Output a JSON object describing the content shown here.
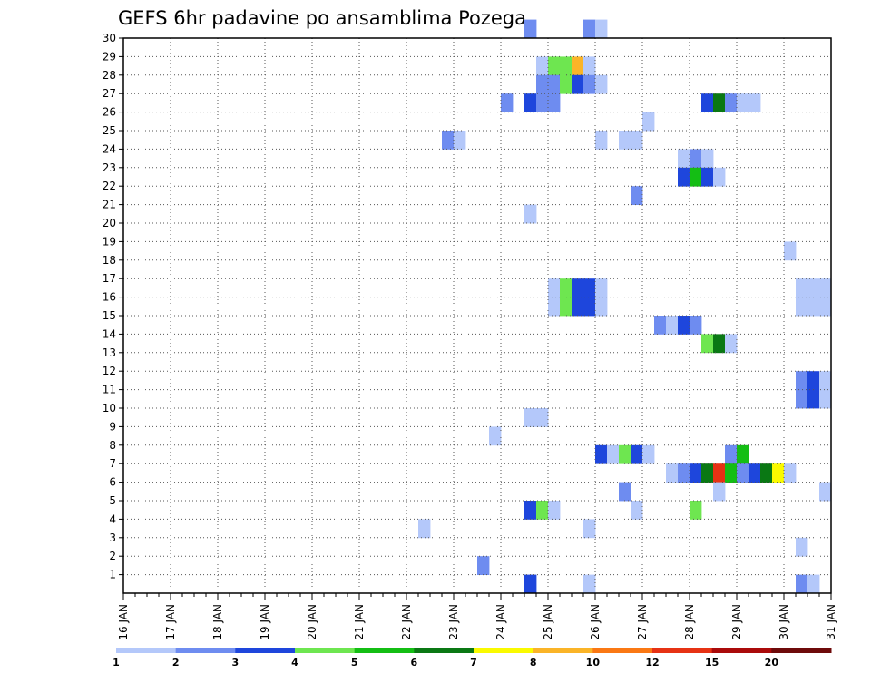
{
  "chart_data": {
    "type": "heatmap",
    "title": "GEFS 6hr padavine po ansamblima Pozega",
    "xlabel": "",
    "ylabel": "",
    "x_ticks": [
      "16 JAN",
      "17 JAN",
      "18 JAN",
      "19 JAN",
      "20 JAN",
      "21 JAN",
      "22 JAN",
      "23 JAN",
      "24 JAN",
      "25 JAN",
      "26 JAN",
      "27 JAN",
      "28 JAN",
      "29 JAN",
      "30 JAN",
      "31 JAN"
    ],
    "y_ticks": [
      1,
      2,
      3,
      4,
      5,
      6,
      7,
      8,
      9,
      10,
      11,
      12,
      13,
      14,
      15,
      16,
      17,
      18,
      19,
      20,
      21,
      22,
      23,
      24,
      25,
      26,
      27,
      28,
      29,
      30
    ],
    "time_steps_per_day": 4,
    "xlim_steps": [
      0,
      60
    ],
    "ylim": [
      0,
      30
    ],
    "grid": true,
    "legend": {
      "placement": "bottom",
      "colors": [
        "#b4c8fa",
        "#6e8cf0",
        "#1e46dc",
        "#6ee650",
        "#14be14",
        "#0a7814",
        "#fafa00",
        "#fab428",
        "#fa7814",
        "#e63214",
        "#aa0a0a",
        "#6e0a0a"
      ],
      "labels": [
        "1",
        "2",
        "3",
        "4",
        "5",
        "6",
        "7",
        "8",
        "10",
        "12",
        "15",
        "20"
      ]
    },
    "cells_note": "each cell is [time_step (6h steps from 16 JAN 00z), ensemble_member, color_class (1-based index into legend.colors)]",
    "cells": [
      [
        34,
        30,
        2
      ],
      [
        39,
        30,
        2
      ],
      [
        40,
        30,
        1
      ],
      [
        35,
        28,
        1
      ],
      [
        36,
        28,
        4
      ],
      [
        37,
        28,
        4
      ],
      [
        38,
        28,
        8
      ],
      [
        39,
        28,
        1
      ],
      [
        35,
        27,
        2
      ],
      [
        36,
        27,
        2
      ],
      [
        37,
        27,
        4
      ],
      [
        38,
        27,
        3
      ],
      [
        39,
        27,
        2
      ],
      [
        40,
        27,
        1
      ],
      [
        32,
        26,
        2
      ],
      [
        34,
        26,
        3
      ],
      [
        35,
        26,
        2
      ],
      [
        36,
        26,
        2
      ],
      [
        49,
        26,
        3
      ],
      [
        50,
        26,
        6
      ],
      [
        51,
        26,
        2
      ],
      [
        52,
        26,
        1
      ],
      [
        53,
        26,
        1
      ],
      [
        44,
        25,
        1
      ],
      [
        27,
        24,
        2
      ],
      [
        28,
        24,
        1
      ],
      [
        40,
        24,
        1
      ],
      [
        42,
        24,
        1
      ],
      [
        43,
        24,
        1
      ],
      [
        47,
        23,
        1
      ],
      [
        48,
        23,
        2
      ],
      [
        49,
        23,
        1
      ],
      [
        47,
        22,
        3
      ],
      [
        48,
        22,
        5
      ],
      [
        49,
        22,
        3
      ],
      [
        50,
        22,
        1
      ],
      [
        43,
        21,
        2
      ],
      [
        34,
        20,
        1
      ],
      [
        56,
        18,
        1
      ],
      [
        36,
        16,
        1
      ],
      [
        37,
        16,
        4
      ],
      [
        38,
        16,
        3
      ],
      [
        39,
        16,
        3
      ],
      [
        40,
        16,
        1
      ],
      [
        57,
        16,
        1
      ],
      [
        58,
        16,
        1
      ],
      [
        59,
        16,
        1
      ],
      [
        36,
        15,
        1
      ],
      [
        37,
        15,
        4
      ],
      [
        38,
        15,
        3
      ],
      [
        39,
        15,
        3
      ],
      [
        40,
        15,
        1
      ],
      [
        57,
        15,
        1
      ],
      [
        58,
        15,
        1
      ],
      [
        59,
        15,
        1
      ],
      [
        45,
        14,
        2
      ],
      [
        46,
        14,
        1
      ],
      [
        47,
        14,
        3
      ],
      [
        48,
        14,
        2
      ],
      [
        49,
        13,
        4
      ],
      [
        50,
        13,
        6
      ],
      [
        51,
        13,
        1
      ],
      [
        57,
        11,
        2
      ],
      [
        58,
        11,
        3
      ],
      [
        59,
        11,
        1
      ],
      [
        57,
        10,
        2
      ],
      [
        58,
        10,
        3
      ],
      [
        59,
        10,
        1
      ],
      [
        34,
        9,
        1
      ],
      [
        35,
        9,
        1
      ],
      [
        31,
        8,
        1
      ],
      [
        40,
        7,
        3
      ],
      [
        41,
        7,
        1
      ],
      [
        42,
        7,
        4
      ],
      [
        43,
        7,
        3
      ],
      [
        44,
        7,
        1
      ],
      [
        51,
        7,
        2
      ],
      [
        52,
        7,
        5
      ],
      [
        46,
        6,
        1
      ],
      [
        47,
        6,
        2
      ],
      [
        48,
        6,
        3
      ],
      [
        49,
        6,
        6
      ],
      [
        50,
        6,
        10
      ],
      [
        51,
        6,
        5
      ],
      [
        52,
        6,
        2
      ],
      [
        53,
        6,
        3
      ],
      [
        54,
        6,
        6
      ],
      [
        55,
        6,
        7
      ],
      [
        56,
        6,
        1
      ],
      [
        42,
        5,
        2
      ],
      [
        50,
        5,
        1
      ],
      [
        59,
        5,
        1
      ],
      [
        34,
        4,
        3
      ],
      [
        35,
        4,
        4
      ],
      [
        36,
        4,
        1
      ],
      [
        43,
        4,
        1
      ],
      [
        48,
        4,
        4
      ],
      [
        25,
        3,
        1
      ],
      [
        39,
        3,
        1
      ],
      [
        57,
        2,
        1
      ],
      [
        30,
        1,
        2
      ],
      [
        34,
        0,
        3
      ],
      [
        39,
        0,
        1
      ],
      [
        57,
        0,
        2
      ],
      [
        58,
        0,
        1
      ]
    ]
  }
}
